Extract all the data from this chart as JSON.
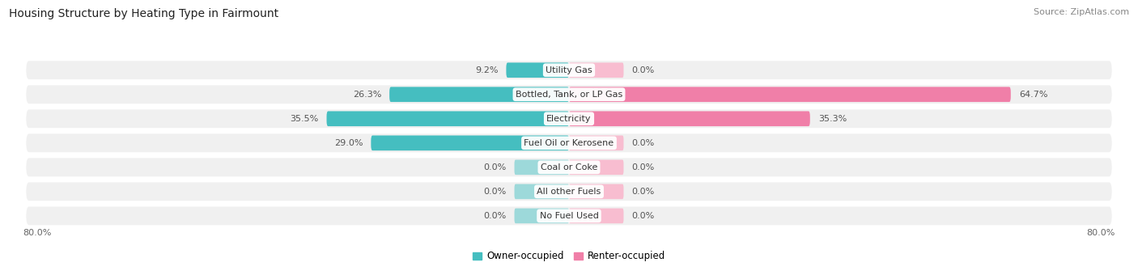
{
  "title": "Housing Structure by Heating Type in Fairmount",
  "source": "Source: ZipAtlas.com",
  "categories": [
    "Utility Gas",
    "Bottled, Tank, or LP Gas",
    "Electricity",
    "Fuel Oil or Kerosene",
    "Coal or Coke",
    "All other Fuels",
    "No Fuel Used"
  ],
  "owner_values": [
    9.2,
    26.3,
    35.5,
    29.0,
    0.0,
    0.0,
    0.0
  ],
  "renter_values": [
    0.0,
    64.7,
    35.3,
    0.0,
    0.0,
    0.0,
    0.0
  ],
  "owner_color": "#45bec0",
  "renter_color": "#f07fa8",
  "owner_color_light": "#9dd9da",
  "renter_color_light": "#f8bdd0",
  "row_bg_color": "#f0f0f0",
  "row_bg_alt": "#e8e8e8",
  "axis_label_left": "80.0%",
  "axis_label_right": "80.0%",
  "x_max": 80.0,
  "stub_size": 8.0,
  "legend_owner": "Owner-occupied",
  "legend_renter": "Renter-occupied",
  "title_fontsize": 10,
  "source_fontsize": 8,
  "label_fontsize": 8,
  "category_fontsize": 8,
  "bar_height": 0.62,
  "row_padding": 0.12
}
